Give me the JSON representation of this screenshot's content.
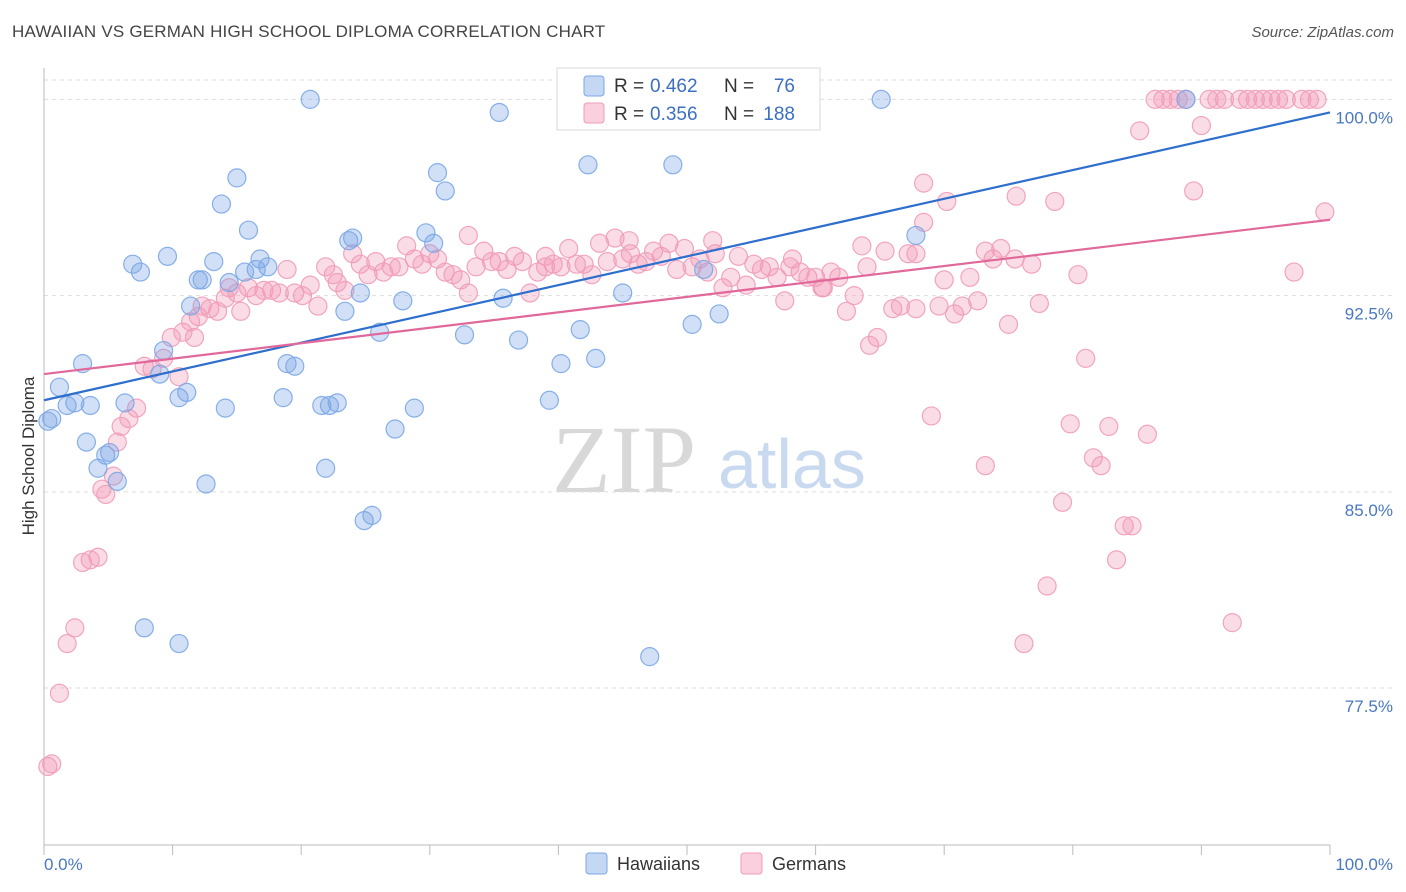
{
  "title": "HAWAIIAN VS GERMAN HIGH SCHOOL DIPLOMA CORRELATION CHART",
  "source": "Source: ZipAtlas.com",
  "colors": {
    "hawaiian": "#7aa7e6",
    "german": "#f19bb8",
    "hawaiian_line": "#2e6fce",
    "german_line": "#e0689a",
    "tick": "#4a78c0"
  },
  "chart_data": {
    "type": "scatter",
    "title": "HAWAIIAN VS GERMAN HIGH SCHOOL DIPLOMA CORRELATION CHART",
    "xlabel": "",
    "ylabel": "High School Diploma",
    "xlim": [
      0,
      100
    ],
    "ylim": [
      71.5,
      101.2
    ],
    "x_tick_labels": [
      "0.0%",
      "100.0%"
    ],
    "y_ticks": [
      77.5,
      85.0,
      92.5,
      100.0
    ],
    "y_tick_labels": [
      "77.5%",
      "85.0%",
      "92.5%",
      "100.0%"
    ],
    "grid": true,
    "legend_position": "top-center",
    "stats": [
      {
        "r_label": "R = ",
        "r": "0.462",
        "n_label": "N = ",
        "n": "76"
      },
      {
        "r_label": "R = ",
        "r": "0.356",
        "n_label": "N = ",
        "n": "188"
      }
    ],
    "series": [
      {
        "name": "Hawaiians",
        "trend": [
          [
            0,
            88.5
          ],
          [
            100,
            99.5
          ]
        ],
        "points": [
          [
            0.3,
            87.7
          ],
          [
            0.6,
            87.8
          ],
          [
            1.2,
            89.0
          ],
          [
            1.8,
            88.3
          ],
          [
            2.4,
            88.4
          ],
          [
            3.0,
            89.9
          ],
          [
            3.3,
            86.9
          ],
          [
            3.6,
            88.3
          ],
          [
            4.2,
            85.9
          ],
          [
            4.8,
            86.4
          ],
          [
            5.1,
            86.5
          ],
          [
            5.7,
            85.4
          ],
          [
            6.3,
            88.4
          ],
          [
            6.9,
            93.7
          ],
          [
            7.5,
            93.4
          ],
          [
            7.8,
            79.8
          ],
          [
            9.0,
            89.5
          ],
          [
            9.3,
            90.4
          ],
          [
            9.6,
            94.0
          ],
          [
            10.5,
            88.6
          ],
          [
            10.5,
            79.2
          ],
          [
            11.1,
            88.8
          ],
          [
            11.4,
            92.1
          ],
          [
            12.0,
            93.1
          ],
          [
            12.3,
            93.1
          ],
          [
            12.6,
            85.3
          ],
          [
            13.2,
            93.8
          ],
          [
            13.8,
            96.0
          ],
          [
            14.1,
            88.2
          ],
          [
            14.4,
            93.0
          ],
          [
            15.0,
            97.0
          ],
          [
            15.6,
            93.4
          ],
          [
            15.9,
            95.0
          ],
          [
            16.5,
            93.5
          ],
          [
            16.8,
            93.9
          ],
          [
            17.4,
            93.6
          ],
          [
            18.6,
            88.6
          ],
          [
            18.9,
            89.9
          ],
          [
            19.5,
            89.8
          ],
          [
            20.7,
            100.0
          ],
          [
            21.6,
            88.3
          ],
          [
            21.9,
            85.9
          ],
          [
            22.2,
            88.3
          ],
          [
            22.8,
            88.4
          ],
          [
            23.4,
            91.9
          ],
          [
            23.7,
            94.6
          ],
          [
            24.0,
            94.7
          ],
          [
            24.6,
            92.6
          ],
          [
            24.9,
            83.9
          ],
          [
            25.5,
            84.1
          ],
          [
            26.1,
            91.1
          ],
          [
            27.3,
            87.4
          ],
          [
            27.9,
            92.3
          ],
          [
            28.8,
            88.2
          ],
          [
            29.7,
            94.9
          ],
          [
            30.3,
            94.5
          ],
          [
            30.6,
            97.2
          ],
          [
            31.2,
            96.5
          ],
          [
            32.7,
            91.0
          ],
          [
            35.4,
            99.5
          ],
          [
            35.7,
            92.4
          ],
          [
            36.9,
            90.8
          ],
          [
            39.3,
            88.5
          ],
          [
            40.2,
            89.9
          ],
          [
            41.7,
            91.2
          ],
          [
            42.3,
            97.5
          ],
          [
            42.9,
            90.1
          ],
          [
            45.0,
            92.6
          ],
          [
            47.1,
            78.7
          ],
          [
            48.9,
            97.5
          ],
          [
            50.4,
            91.4
          ],
          [
            51.3,
            93.5
          ],
          [
            52.5,
            91.8
          ],
          [
            65.1,
            100.0
          ],
          [
            67.8,
            94.8
          ],
          [
            88.8,
            100.0
          ]
        ]
      },
      {
        "name": "Germans",
        "trend": [
          [
            0,
            89.5
          ],
          [
            100,
            95.4
          ]
        ],
        "points": [
          [
            0.3,
            74.5
          ],
          [
            0.6,
            74.6
          ],
          [
            1.2,
            77.3
          ],
          [
            1.8,
            79.2
          ],
          [
            2.4,
            79.8
          ],
          [
            3.0,
            82.3
          ],
          [
            3.6,
            82.4
          ],
          [
            4.2,
            82.5
          ],
          [
            4.5,
            85.1
          ],
          [
            4.8,
            84.9
          ],
          [
            5.4,
            85.6
          ],
          [
            5.7,
            86.9
          ],
          [
            6.0,
            87.5
          ],
          [
            6.6,
            87.8
          ],
          [
            7.2,
            88.2
          ],
          [
            7.8,
            89.8
          ],
          [
            8.4,
            89.7
          ],
          [
            9.3,
            90.1
          ],
          [
            9.9,
            90.9
          ],
          [
            10.5,
            89.4
          ],
          [
            10.8,
            91.1
          ],
          [
            11.4,
            91.5
          ],
          [
            11.7,
            90.9
          ],
          [
            12.0,
            91.7
          ],
          [
            12.3,
            92.1
          ],
          [
            12.9,
            92.0
          ],
          [
            13.5,
            91.9
          ],
          [
            14.1,
            92.4
          ],
          [
            14.4,
            92.8
          ],
          [
            15.0,
            92.6
          ],
          [
            15.3,
            91.9
          ],
          [
            15.9,
            92.8
          ],
          [
            16.5,
            92.5
          ],
          [
            17.1,
            92.7
          ],
          [
            17.7,
            92.7
          ],
          [
            18.3,
            92.6
          ],
          [
            18.9,
            93.5
          ],
          [
            19.5,
            92.6
          ],
          [
            20.1,
            92.5
          ],
          [
            20.7,
            92.9
          ],
          [
            21.3,
            92.1
          ],
          [
            21.9,
            93.6
          ],
          [
            22.5,
            93.3
          ],
          [
            22.8,
            93.0
          ],
          [
            23.4,
            92.7
          ],
          [
            24.0,
            94.1
          ],
          [
            24.6,
            93.7
          ],
          [
            25.2,
            93.3
          ],
          [
            25.8,
            93.8
          ],
          [
            26.4,
            93.4
          ],
          [
            27.0,
            93.6
          ],
          [
            27.6,
            93.6
          ],
          [
            28.2,
            94.4
          ],
          [
            28.8,
            93.9
          ],
          [
            29.4,
            93.7
          ],
          [
            30.0,
            94.1
          ],
          [
            30.6,
            93.9
          ],
          [
            31.2,
            93.4
          ],
          [
            31.8,
            93.3
          ],
          [
            32.4,
            93.1
          ],
          [
            33.0,
            92.6
          ],
          [
            33.6,
            93.6
          ],
          [
            34.2,
            94.2
          ],
          [
            34.8,
            93.8
          ],
          [
            35.4,
            93.8
          ],
          [
            36.0,
            93.5
          ],
          [
            36.6,
            94.0
          ],
          [
            37.2,
            93.8
          ],
          [
            37.8,
            92.6
          ],
          [
            38.4,
            93.4
          ],
          [
            39.0,
            93.6
          ],
          [
            39.6,
            93.7
          ],
          [
            40.2,
            93.6
          ],
          [
            40.8,
            94.3
          ],
          [
            41.4,
            93.7
          ],
          [
            42.0,
            93.7
          ],
          [
            42.6,
            93.3
          ],
          [
            43.2,
            94.5
          ],
          [
            43.8,
            93.8
          ],
          [
            44.4,
            94.7
          ],
          [
            45.0,
            93.9
          ],
          [
            45.6,
            94.1
          ],
          [
            46.2,
            93.7
          ],
          [
            46.8,
            93.8
          ],
          [
            47.4,
            94.2
          ],
          [
            48.0,
            94.0
          ],
          [
            48.6,
            94.5
          ],
          [
            49.2,
            93.5
          ],
          [
            49.8,
            94.3
          ],
          [
            50.4,
            93.6
          ],
          [
            51.0,
            93.9
          ],
          [
            51.6,
            93.4
          ],
          [
            52.2,
            94.1
          ],
          [
            52.8,
            92.8
          ],
          [
            53.4,
            93.2
          ],
          [
            54.0,
            94.0
          ],
          [
            54.6,
            92.9
          ],
          [
            55.2,
            93.7
          ],
          [
            55.8,
            93.5
          ],
          [
            56.4,
            93.6
          ],
          [
            57.0,
            93.2
          ],
          [
            57.6,
            92.3
          ],
          [
            58.2,
            93.9
          ],
          [
            58.8,
            93.4
          ],
          [
            59.4,
            93.2
          ],
          [
            60.0,
            93.2
          ],
          [
            60.6,
            92.8
          ],
          [
            61.2,
            93.4
          ],
          [
            61.8,
            93.2
          ],
          [
            62.4,
            91.9
          ],
          [
            63.0,
            92.5
          ],
          [
            63.6,
            94.4
          ],
          [
            64.2,
            90.6
          ],
          [
            64.8,
            90.9
          ],
          [
            65.4,
            94.2
          ],
          [
            66.0,
            92.0
          ],
          [
            66.6,
            92.1
          ],
          [
            67.2,
            94.1
          ],
          [
            67.8,
            92.0
          ],
          [
            68.4,
            96.8
          ],
          [
            69.0,
            87.9
          ],
          [
            69.6,
            92.1
          ],
          [
            70.2,
            96.1
          ],
          [
            70.8,
            91.8
          ],
          [
            71.4,
            92.1
          ],
          [
            72.0,
            93.2
          ],
          [
            72.6,
            92.3
          ],
          [
            73.2,
            86.0
          ],
          [
            73.8,
            93.9
          ],
          [
            74.4,
            94.3
          ],
          [
            75.0,
            91.4
          ],
          [
            75.6,
            96.3
          ],
          [
            76.2,
            79.2
          ],
          [
            76.8,
            93.7
          ],
          [
            77.4,
            92.2
          ],
          [
            78.0,
            81.4
          ],
          [
            78.6,
            96.1
          ],
          [
            79.2,
            84.6
          ],
          [
            79.8,
            87.6
          ],
          [
            80.4,
            93.3
          ],
          [
            81.0,
            90.1
          ],
          [
            81.6,
            86.3
          ],
          [
            82.2,
            86.0
          ],
          [
            82.8,
            87.5
          ],
          [
            83.4,
            82.4
          ],
          [
            84.0,
            83.7
          ],
          [
            84.6,
            83.7
          ],
          [
            85.2,
            98.8
          ],
          [
            85.8,
            87.2
          ],
          [
            86.4,
            100.0
          ],
          [
            87.0,
            100.0
          ],
          [
            87.6,
            100.0
          ],
          [
            88.2,
            100.0
          ],
          [
            88.8,
            100.0
          ],
          [
            89.4,
            96.5
          ],
          [
            90.0,
            99.0
          ],
          [
            90.6,
            100.0
          ],
          [
            91.2,
            100.0
          ],
          [
            91.8,
            100.0
          ],
          [
            92.4,
            80.0
          ],
          [
            93.0,
            100.0
          ],
          [
            93.6,
            100.0
          ],
          [
            94.2,
            100.0
          ],
          [
            94.8,
            100.0
          ],
          [
            95.4,
            100.0
          ],
          [
            96.0,
            100.0
          ],
          [
            96.6,
            100.0
          ],
          [
            97.2,
            93.4
          ],
          [
            97.8,
            100.0
          ],
          [
            98.4,
            100.0
          ],
          [
            99.0,
            100.0
          ],
          [
            99.6,
            95.7
          ],
          [
            68.4,
            95.3
          ],
          [
            73.2,
            94.2
          ],
          [
            67.8,
            94.1
          ],
          [
            58.0,
            93.6
          ],
          [
            60.5,
            92.8
          ],
          [
            70.0,
            93.1
          ],
          [
            75.5,
            93.9
          ],
          [
            64.0,
            93.6
          ],
          [
            45.5,
            94.6
          ],
          [
            52.0,
            94.6
          ],
          [
            39.0,
            94.0
          ],
          [
            33.0,
            94.8
          ]
        ]
      }
    ]
  },
  "legend": {
    "items": [
      "Hawaiians",
      "Germans"
    ]
  },
  "watermark": {
    "part1": "ZIP",
    "part2": "atlas"
  }
}
